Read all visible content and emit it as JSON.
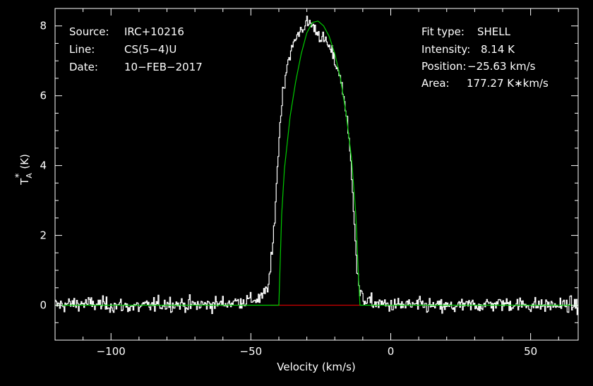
{
  "header_left": [
    {
      "label": "Source:",
      "value": "IRC+10216"
    },
    {
      "label": "Line:",
      "value": "CS(5−4)U"
    },
    {
      "label": "Date:",
      "value": "10−FEB−2017"
    }
  ],
  "header_right": [
    {
      "label": "Fit type:",
      "value": "SHELL"
    },
    {
      "label": "Intensity:",
      "value": "8.14 K"
    },
    {
      "label": "Position:",
      "value": "−25.63 km/s"
    },
    {
      "label": "Area:",
      "value": "177.27 K∗km/s"
    }
  ],
  "chart_data": {
    "type": "line",
    "xlabel": "Velocity (km/s)",
    "ylabel": "T_A^* (K)",
    "ylabel_parts": {
      "main": "T",
      "sub": "A",
      "sup": "*",
      "unit": "(K)"
    },
    "xlim": [
      -120,
      67
    ],
    "ylim": [
      -1,
      8.5
    ],
    "x_ticks": [
      -100,
      -50,
      0,
      50
    ],
    "x_tick_labels": [
      "−100",
      "−50",
      "0",
      "50"
    ],
    "y_ticks": [
      0,
      2,
      4,
      6,
      8
    ],
    "y_tick_labels": [
      "0",
      "2",
      "4",
      "6",
      "8"
    ],
    "grid": false,
    "colors": {
      "background": "#000000",
      "axes": "#ffffff",
      "spectrum": "#ffffff",
      "fit": "#00cc00",
      "baseline": "#cc0000"
    },
    "series": [
      {
        "role": "observed spectrum",
        "x": [
          -120,
          -110,
          -100,
          -90,
          -80,
          -70,
          -60,
          -50,
          -46,
          -44,
          -43,
          -42,
          -41,
          -40,
          -39,
          -38,
          -37,
          -36,
          -35,
          -34,
          -33,
          -32,
          -31,
          -30,
          -29,
          -28,
          -27,
          -26,
          -25,
          -24,
          -23,
          -22,
          -21,
          -20,
          -19,
          -18,
          -17,
          -16,
          -15,
          -14,
          -13,
          -12,
          -11,
          -10,
          -8,
          -5,
          0,
          10,
          20,
          30,
          40,
          50,
          60,
          67
        ],
        "y": [
          0.0,
          0.05,
          0.0,
          -0.05,
          0.05,
          0.0,
          0.05,
          0.15,
          0.2,
          0.5,
          1.0,
          1.8,
          3.2,
          4.6,
          5.8,
          6.4,
          6.9,
          7.2,
          7.4,
          7.6,
          7.8,
          7.9,
          8.0,
          8.05,
          8.1,
          8.0,
          7.9,
          7.8,
          7.7,
          7.6,
          7.5,
          7.4,
          7.2,
          7.0,
          6.8,
          6.5,
          6.1,
          5.6,
          4.8,
          3.8,
          2.5,
          1.0,
          0.3,
          0.2,
          0.1,
          0.05,
          0.0,
          0.0,
          -0.05,
          0.0,
          0.05,
          0.0,
          0.0,
          0.0
        ],
        "noise_rms": 0.15
      },
      {
        "role": "SHELL fit",
        "x": [
          -120,
          -40,
          -39,
          -38,
          -36,
          -34,
          -32,
          -30,
          -28,
          -26,
          -24,
          -22,
          -20,
          -18,
          -16,
          -14,
          -12.5,
          -11.5,
          -11,
          67
        ],
        "y": [
          0,
          0,
          2.6,
          3.9,
          5.4,
          6.4,
          7.2,
          7.8,
          8.1,
          8.14,
          8.0,
          7.7,
          7.2,
          6.5,
          5.5,
          4.2,
          2.6,
          0.8,
          0,
          0
        ]
      },
      {
        "role": "baseline window",
        "x": [
          -43,
          -11
        ],
        "y": [
          0,
          0
        ]
      }
    ]
  }
}
